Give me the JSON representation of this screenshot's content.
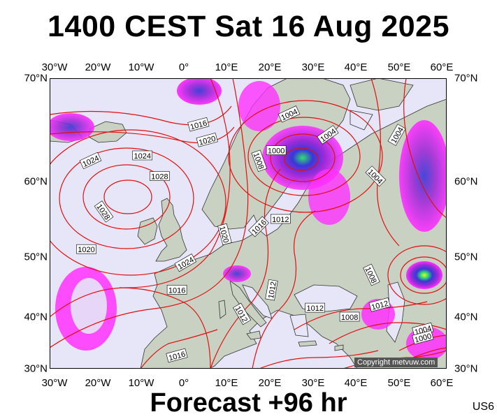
{
  "title": "1400 CEST Sat 16 Aug 2025",
  "footer": "Forecast +96 hr",
  "model_code": "US6",
  "copyright": "Copyright metvuw.com",
  "axes": {
    "longitude_ticks": [
      "30°W",
      "20°W",
      "10°W",
      "0°",
      "10°E",
      "20°E",
      "30°E",
      "40°E",
      "50°E",
      "60°E"
    ],
    "latitude_ticks": [
      "70°N",
      "60°N",
      "50°N",
      "40°N",
      "30°N"
    ]
  },
  "isobar_labels": [
    {
      "text": "1016",
      "lon": 4,
      "lat": 65.5,
      "rot": -15
    },
    {
      "text": "1020",
      "lon": 6,
      "lat": 64,
      "rot": -15
    },
    {
      "text": "1024",
      "lon": -21,
      "lat": 62,
      "rot": -25
    },
    {
      "text": "1024",
      "lon": -9,
      "lat": 62.5,
      "rot": 0
    },
    {
      "text": "1028",
      "lon": -5,
      "lat": 60.5,
      "rot": 0
    },
    {
      "text": "1028",
      "lon": -18,
      "lat": 56,
      "rot": 55
    },
    {
      "text": "1020",
      "lon": -22,
      "lat": 51,
      "rot": 0
    },
    {
      "text": "1024",
      "lon": 1,
      "lat": 49,
      "rot": -30
    },
    {
      "text": "1020",
      "lon": 10,
      "lat": 53,
      "rot": 75
    },
    {
      "text": "1016",
      "lon": -1,
      "lat": 44.5,
      "rot": 0
    },
    {
      "text": "1016",
      "lon": 18,
      "lat": 54,
      "rot": -45
    },
    {
      "text": "1012",
      "lon": 23,
      "lat": 55,
      "rot": 0
    },
    {
      "text": "1008",
      "lon": 18,
      "lat": 62,
      "rot": 70
    },
    {
      "text": "1000",
      "lon": 22,
      "lat": 63,
      "rot": 0
    },
    {
      "text": "1004",
      "lon": 25,
      "lat": 66.5,
      "rot": -25
    },
    {
      "text": "1004",
      "lon": 34,
      "lat": 64.5,
      "rot": -35
    },
    {
      "text": "1004",
      "lon": 45,
      "lat": 60.5,
      "rot": 45
    },
    {
      "text": "1004",
      "lon": 50,
      "lat": 64.5,
      "rot": -60
    },
    {
      "text": "1012",
      "lon": 21,
      "lat": 44.5,
      "rot": -80
    },
    {
      "text": "1012",
      "lon": 14,
      "lat": 40.5,
      "rot": 60
    },
    {
      "text": "1012",
      "lon": 31,
      "lat": 41.5,
      "rot": 0
    },
    {
      "text": "1008",
      "lon": 39,
      "lat": 40,
      "rot": 0
    },
    {
      "text": "1012",
      "lon": 46,
      "lat": 42,
      "rot": -15
    },
    {
      "text": "1008",
      "lon": 44,
      "lat": 47,
      "rot": 65
    },
    {
      "text": "1004",
      "lon": 56,
      "lat": 37.5,
      "rot": -15
    },
    {
      "text": "1000",
      "lon": 56,
      "lat": 36,
      "rot": -15
    },
    {
      "text": "1016",
      "lon": -1,
      "lat": 32.5,
      "rot": -15
    }
  ],
  "colors": {
    "ocean": "#e6e6f8",
    "land": "#c9d1c2",
    "isobar": "#e01010",
    "precip_light": "#ff30ff",
    "precip_mid": "#9d2bd8",
    "precip_heavy": "#3838d8",
    "precip_peak": "#30e070"
  }
}
